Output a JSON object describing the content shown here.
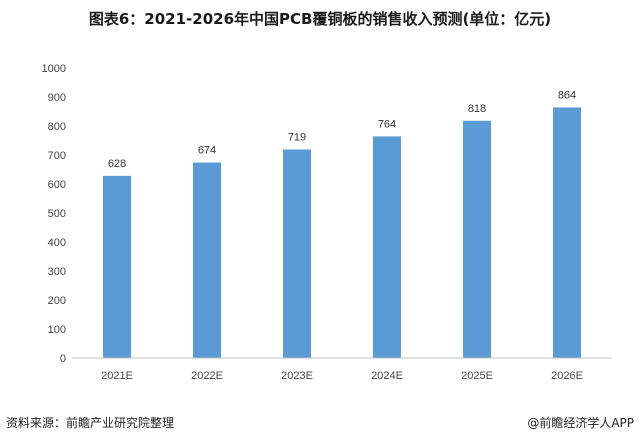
{
  "footer": {
    "source": "资料来源：前瞻产业研究院整理",
    "credit": "@前瞻经济学人APP"
  },
  "chart_data": {
    "type": "bar",
    "title": "图表6：2021-2026年中国PCB覆铜板的销售收入预测(单位：亿元)",
    "categories": [
      "2021E",
      "2022E",
      "2023E",
      "2024E",
      "2025E",
      "2026E"
    ],
    "values": [
      628,
      674,
      719,
      764,
      818,
      864
    ],
    "ylim": [
      0,
      1000
    ],
    "yticks": [
      0,
      100,
      200,
      300,
      400,
      500,
      600,
      700,
      800,
      900,
      1000
    ],
    "bar_color": "#5b9bd5",
    "grid": false,
    "data_labels": true
  }
}
